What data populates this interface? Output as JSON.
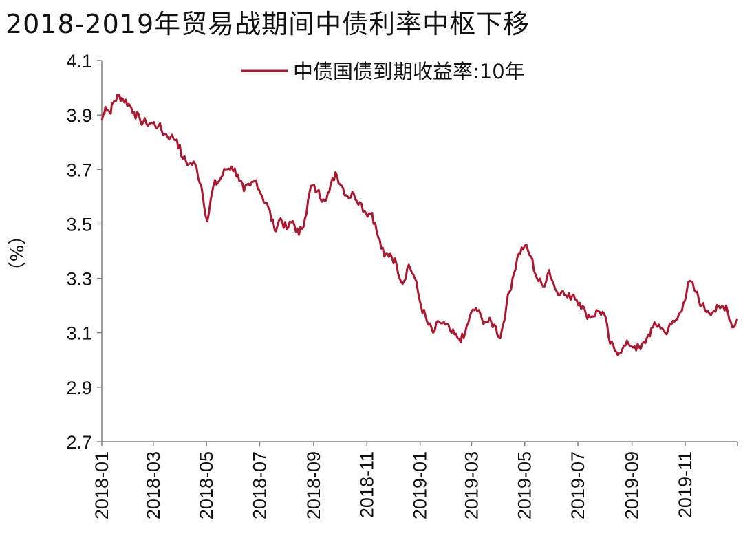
{
  "title": "2018-2019年贸易战期间中债利率中枢下移",
  "chart_data": {
    "type": "line",
    "title": "2018-2019年贸易战期间中债利率中枢下移",
    "ylabel": "（%）",
    "xlabel": "",
    "ylim": [
      2.7,
      4.1
    ],
    "yticks": [
      4.1,
      3.9,
      3.7,
      3.5,
      3.3,
      3.1,
      2.9,
      2.7
    ],
    "ytick_labels": [
      "4.1",
      "3.9",
      "3.7",
      "3.5",
      "3.3",
      "3.1",
      "2.9",
      "2.7"
    ],
    "xlim": [
      "2018-01-01",
      "2019-12-31"
    ],
    "xticks": [
      "2018-01",
      "2018-03",
      "2018-05",
      "2018-07",
      "2018-09",
      "2018-11",
      "2019-01",
      "2019-03",
      "2019-05",
      "2019-07",
      "2019-09",
      "2019-11"
    ],
    "grid": false,
    "legend_position": "top",
    "line_color": "#b0172f",
    "series": [
      {
        "name": "中债国债到期收益率:10年",
        "x": [
          "2018-01-01",
          "2018-01-05",
          "2018-01-10",
          "2018-01-15",
          "2018-01-20",
          "2018-01-25",
          "2018-02-01",
          "2018-02-07",
          "2018-02-14",
          "2018-02-21",
          "2018-02-28",
          "2018-03-07",
          "2018-03-14",
          "2018-03-21",
          "2018-03-28",
          "2018-04-04",
          "2018-04-11",
          "2018-04-18",
          "2018-04-25",
          "2018-05-02",
          "2018-05-09",
          "2018-05-16",
          "2018-05-23",
          "2018-05-30",
          "2018-06-06",
          "2018-06-13",
          "2018-06-20",
          "2018-06-27",
          "2018-07-04",
          "2018-07-11",
          "2018-07-18",
          "2018-07-25",
          "2018-08-01",
          "2018-08-08",
          "2018-08-15",
          "2018-08-22",
          "2018-08-29",
          "2018-09-05",
          "2018-09-12",
          "2018-09-19",
          "2018-09-26",
          "2018-10-03",
          "2018-10-10",
          "2018-10-17",
          "2018-10-24",
          "2018-10-31",
          "2018-11-07",
          "2018-11-14",
          "2018-11-21",
          "2018-11-28",
          "2018-12-05",
          "2018-12-12",
          "2018-12-19",
          "2018-12-26",
          "2019-01-02",
          "2019-01-09",
          "2019-01-16",
          "2019-01-23",
          "2019-01-30",
          "2019-02-06",
          "2019-02-13",
          "2019-02-20",
          "2019-02-27",
          "2019-03-06",
          "2019-03-13",
          "2019-03-20",
          "2019-03-27",
          "2019-04-03",
          "2019-04-10",
          "2019-04-17",
          "2019-04-24",
          "2019-05-01",
          "2019-05-08",
          "2019-05-15",
          "2019-05-22",
          "2019-05-29",
          "2019-06-05",
          "2019-06-12",
          "2019-06-19",
          "2019-06-26",
          "2019-07-03",
          "2019-07-10",
          "2019-07-17",
          "2019-07-24",
          "2019-07-31",
          "2019-08-07",
          "2019-08-14",
          "2019-08-21",
          "2019-08-28",
          "2019-09-04",
          "2019-09-11",
          "2019-09-18",
          "2019-09-25",
          "2019-10-02",
          "2019-10-09",
          "2019-10-16",
          "2019-10-23",
          "2019-10-30",
          "2019-11-06",
          "2019-11-13",
          "2019-11-20",
          "2019-11-27",
          "2019-12-04",
          "2019-12-11",
          "2019-12-18",
          "2019-12-25",
          "2019-12-31"
        ],
        "values": [
          3.88,
          3.93,
          3.91,
          3.95,
          3.97,
          3.96,
          3.94,
          3.91,
          3.88,
          3.87,
          3.87,
          3.86,
          3.83,
          3.82,
          3.81,
          3.74,
          3.72,
          3.72,
          3.64,
          3.51,
          3.64,
          3.66,
          3.7,
          3.71,
          3.68,
          3.62,
          3.64,
          3.66,
          3.6,
          3.56,
          3.48,
          3.52,
          3.48,
          3.51,
          3.46,
          3.52,
          3.64,
          3.62,
          3.59,
          3.62,
          3.69,
          3.64,
          3.6,
          3.61,
          3.58,
          3.54,
          3.54,
          3.45,
          3.38,
          3.39,
          3.35,
          3.28,
          3.35,
          3.3,
          3.2,
          3.14,
          3.1,
          3.14,
          3.13,
          3.1,
          3.08,
          3.08,
          3.16,
          3.19,
          3.15,
          3.14,
          3.13,
          3.08,
          3.2,
          3.3,
          3.39,
          3.42,
          3.38,
          3.3,
          3.27,
          3.33,
          3.26,
          3.25,
          3.23,
          3.24,
          3.21,
          3.17,
          3.16,
          3.18,
          3.17,
          3.06,
          3.03,
          3.04,
          3.06,
          3.05,
          3.04,
          3.08,
          3.12,
          3.13,
          3.1,
          3.13,
          3.15,
          3.21,
          3.29,
          3.25,
          3.2,
          3.18,
          3.18,
          3.19,
          3.2,
          3.12,
          3.15
        ]
      }
    ]
  }
}
